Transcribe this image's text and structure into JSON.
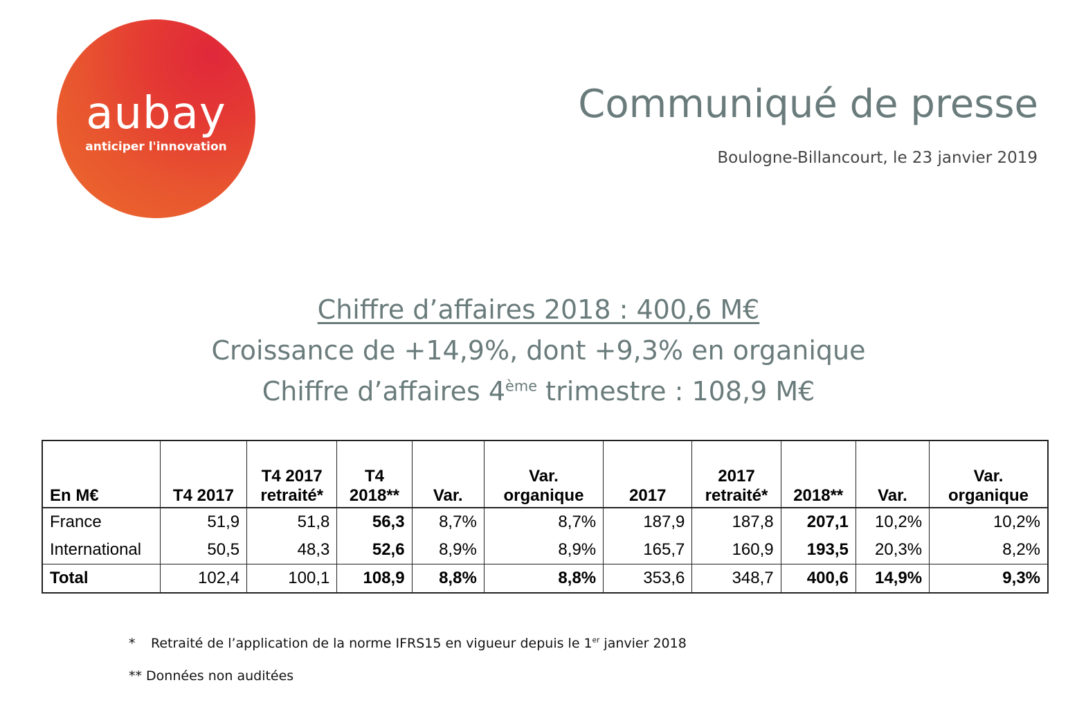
{
  "logo": {
    "wordmark": "aubay",
    "tagline": "anticiper l'innovation"
  },
  "header": {
    "title": "Communiqué de presse",
    "place_date": "Boulogne-Billancourt, le 23 janvier 2019"
  },
  "headlines": {
    "line1": "Chiffre d’affaires 2018 : 400,6 M€",
    "line2": "Croissance de +14,9%, dont +9,3% en organique",
    "line3_before": "Chiffre d’affaires 4",
    "line3_sup": "ème",
    "line3_after": " trimestre : 108,9 M€"
  },
  "table": {
    "headers": [
      [
        "",
        "En M€"
      ],
      [
        "",
        "T4 2017"
      ],
      [
        "T4 2017",
        "retraité*"
      ],
      [
        "T4",
        "2018**"
      ],
      [
        "",
        "Var."
      ],
      [
        "Var.",
        "organique"
      ],
      [
        "",
        "2017"
      ],
      [
        "2017",
        "retraité*"
      ],
      [
        "",
        "2018**"
      ],
      [
        "",
        "Var."
      ],
      [
        "Var.",
        "organique"
      ]
    ],
    "rows": [
      {
        "label": "France",
        "values": [
          "51,9",
          "51,8",
          "56,3",
          "8,7%",
          "8,7%",
          "187,9",
          "187,8",
          "207,1",
          "10,2%",
          "10,2%"
        ]
      },
      {
        "label": "International",
        "values": [
          "50,5",
          "48,3",
          "52,6",
          "8,9%",
          "8,9%",
          "165,7",
          "160,9",
          "193,5",
          "20,3%",
          "8,2%"
        ]
      },
      {
        "label": "Total",
        "values": [
          "102,4",
          "100,1",
          "108,9",
          "8,8%",
          "8,8%",
          "353,6",
          "348,7",
          "400,6",
          "14,9%",
          "9,3%"
        ]
      }
    ]
  },
  "footnotes": {
    "note1_mark": "*",
    "note1_before": "Retraité de l’application de la norme IFRS15 en vigueur depuis le 1",
    "note1_sup": "er",
    "note1_after": " janvier 2018",
    "note2": "** Données non auditées"
  }
}
